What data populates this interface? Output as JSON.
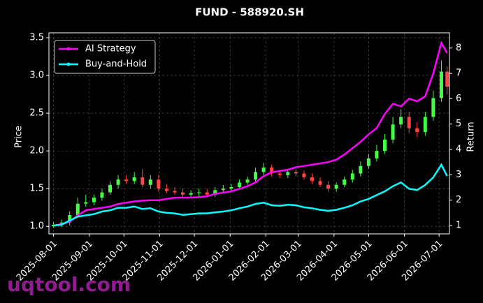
{
  "chart_data": {
    "type": "candlestick",
    "title": "FUND - 588920.SH",
    "ylabel": "Price",
    "y2label": "Return",
    "watermark": "uqtool.com",
    "x": [
      "2025-08-01",
      "2025-08-08",
      "2025-08-15",
      "2025-08-22",
      "2025-08-29",
      "2025-09-05",
      "2025-09-12",
      "2025-09-19",
      "2025-09-26",
      "2025-10-03",
      "2025-10-10",
      "2025-10-17",
      "2025-10-24",
      "2025-10-31",
      "2025-11-07",
      "2025-11-14",
      "2025-11-21",
      "2025-11-28",
      "2025-12-05",
      "2025-12-12",
      "2025-12-19",
      "2025-12-26",
      "2026-01-02",
      "2026-01-09",
      "2026-01-16",
      "2026-01-23",
      "2026-01-30",
      "2026-02-06",
      "2026-02-13",
      "2026-02-20",
      "2026-02-27",
      "2026-03-06",
      "2026-03-13",
      "2026-03-20",
      "2026-03-27",
      "2026-04-03",
      "2026-04-10",
      "2026-04-17",
      "2026-04-24",
      "2026-05-01",
      "2026-05-08",
      "2026-05-15",
      "2026-05-22",
      "2026-05-29",
      "2026-06-05",
      "2026-06-12",
      "2026-06-19",
      "2026-06-26",
      "2026-07-03",
      "2026-07-08"
    ],
    "open": [
      1.0,
      1.02,
      1.05,
      1.15,
      1.3,
      1.32,
      1.38,
      1.45,
      1.55,
      1.62,
      1.6,
      1.65,
      1.55,
      1.62,
      1.5,
      1.47,
      1.45,
      1.42,
      1.44,
      1.45,
      1.42,
      1.48,
      1.5,
      1.52,
      1.58,
      1.62,
      1.72,
      1.78,
      1.7,
      1.68,
      1.72,
      1.7,
      1.65,
      1.6,
      1.55,
      1.5,
      1.55,
      1.62,
      1.7,
      1.8,
      1.9,
      2.0,
      2.15,
      2.35,
      2.45,
      2.3,
      2.25,
      2.45,
      2.7,
      3.05
    ],
    "high": [
      1.06,
      1.09,
      1.2,
      1.38,
      1.42,
      1.42,
      1.5,
      1.6,
      1.68,
      1.68,
      1.72,
      1.76,
      1.68,
      1.68,
      1.56,
      1.52,
      1.5,
      1.48,
      1.5,
      1.5,
      1.52,
      1.55,
      1.56,
      1.62,
      1.66,
      1.78,
      1.84,
      1.82,
      1.75,
      1.76,
      1.76,
      1.74,
      1.7,
      1.65,
      1.6,
      1.58,
      1.66,
      1.75,
      1.86,
      1.96,
      2.08,
      2.22,
      2.45,
      2.55,
      2.52,
      2.38,
      2.52,
      2.8,
      3.2,
      3.12
    ],
    "low": [
      0.98,
      0.99,
      1.01,
      1.12,
      1.26,
      1.28,
      1.34,
      1.42,
      1.5,
      1.56,
      1.56,
      1.52,
      1.5,
      1.46,
      1.44,
      1.42,
      1.39,
      1.38,
      1.4,
      1.39,
      1.39,
      1.45,
      1.46,
      1.49,
      1.55,
      1.58,
      1.68,
      1.66,
      1.64,
      1.64,
      1.66,
      1.62,
      1.56,
      1.52,
      1.46,
      1.46,
      1.52,
      1.58,
      1.66,
      1.76,
      1.86,
      1.96,
      2.1,
      2.3,
      2.24,
      2.18,
      2.2,
      2.4,
      2.65,
      2.75
    ],
    "close": [
      1.02,
      1.05,
      1.15,
      1.3,
      1.32,
      1.38,
      1.45,
      1.55,
      1.62,
      1.6,
      1.65,
      1.55,
      1.62,
      1.5,
      1.47,
      1.45,
      1.42,
      1.44,
      1.45,
      1.42,
      1.48,
      1.5,
      1.52,
      1.58,
      1.62,
      1.72,
      1.78,
      1.7,
      1.68,
      1.72,
      1.7,
      1.65,
      1.6,
      1.55,
      1.5,
      1.55,
      1.62,
      1.7,
      1.8,
      1.9,
      2.0,
      2.15,
      2.35,
      2.45,
      2.3,
      2.25,
      2.45,
      2.7,
      3.05,
      2.85
    ],
    "up_color": "#44ff44",
    "down_color": "#ff4444",
    "series": [
      {
        "name": "AI Strategy",
        "color": "#ff00ff",
        "axis": "y2",
        "values": [
          1.0,
          1.05,
          1.15,
          1.4,
          1.6,
          1.65,
          1.7,
          1.75,
          1.85,
          1.9,
          1.95,
          1.98,
          2.0,
          2.0,
          2.05,
          2.1,
          2.1,
          2.1,
          2.12,
          2.15,
          2.25,
          2.3,
          2.35,
          2.45,
          2.55,
          2.7,
          2.95,
          3.1,
          3.15,
          3.2,
          3.3,
          3.35,
          3.4,
          3.45,
          3.5,
          3.6,
          3.8,
          4.05,
          4.3,
          4.6,
          4.85,
          5.4,
          5.8,
          5.7,
          6.0,
          5.9,
          6.1,
          7.0,
          8.2,
          7.8
        ]
      },
      {
        "name": "Buy-and-Hold",
        "color": "#00ffff",
        "axis": "y2",
        "values": [
          1.0,
          1.03,
          1.2,
          1.35,
          1.4,
          1.45,
          1.55,
          1.6,
          1.7,
          1.7,
          1.75,
          1.65,
          1.68,
          1.55,
          1.5,
          1.48,
          1.42,
          1.45,
          1.48,
          1.48,
          1.52,
          1.55,
          1.6,
          1.68,
          1.75,
          1.85,
          1.9,
          1.8,
          1.78,
          1.82,
          1.8,
          1.72,
          1.68,
          1.62,
          1.58,
          1.62,
          1.7,
          1.8,
          1.95,
          2.05,
          2.2,
          2.35,
          2.55,
          2.7,
          2.45,
          2.4,
          2.6,
          2.9,
          3.4,
          2.95
        ]
      }
    ],
    "xlim": [
      "2025-07-28",
      "2026-07-10"
    ],
    "xticks": [
      "2025-08-01",
      "2025-09-01",
      "2025-10-01",
      "2025-11-01",
      "2025-12-01",
      "2026-01-01",
      "2026-02-01",
      "2026-03-01",
      "2026-04-01",
      "2026-05-01",
      "2026-06-01",
      "2026-07-01"
    ],
    "ylim": [
      0.9,
      3.565
    ],
    "yticks": [
      {
        "value": 1,
        "label": "1.0"
      },
      1.5,
      {
        "value": 2,
        "label": "2.0"
      },
      2.5,
      {
        "value": 3,
        "label": "3.0"
      },
      3.5
    ],
    "y2lim": [
      0.67,
      8.6
    ],
    "y2ticks": [
      1,
      2,
      3,
      4,
      5,
      6,
      7,
      8
    ],
    "grid": true,
    "legend": "upper left"
  }
}
